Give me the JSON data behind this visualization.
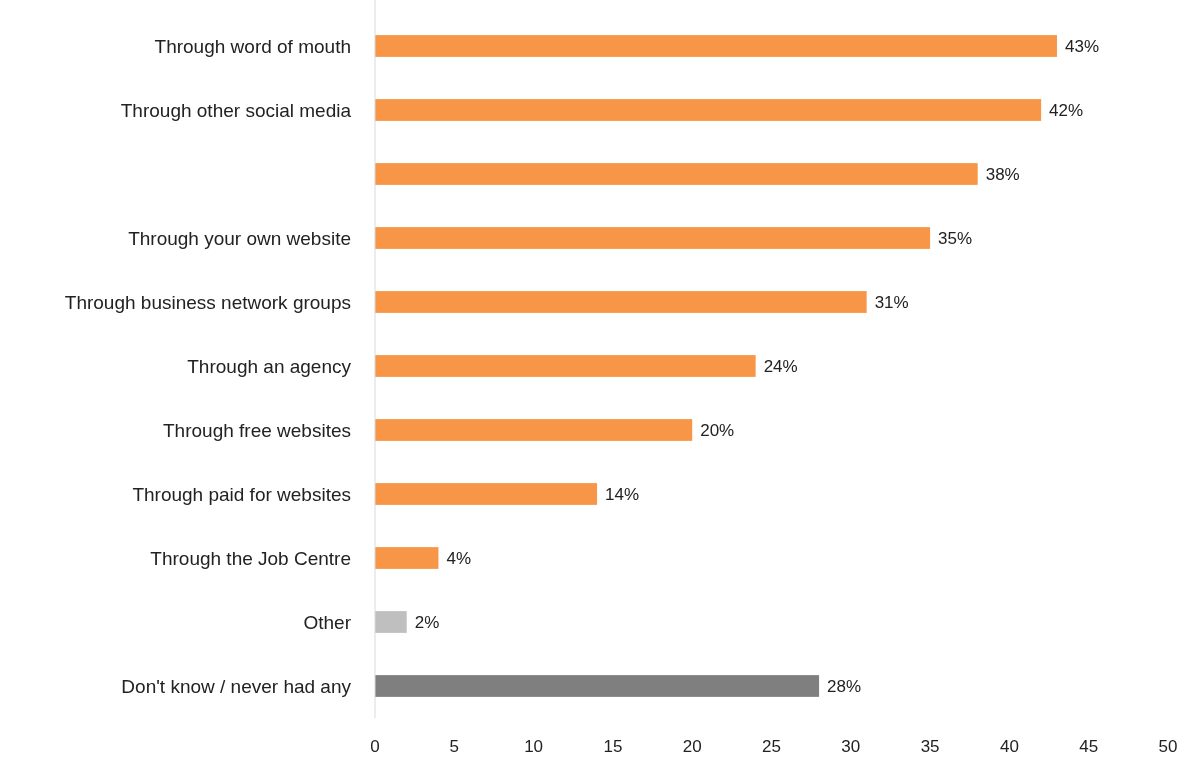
{
  "chart_data": {
    "type": "bar",
    "orientation": "horizontal",
    "categories": [
      "Through word of mouth",
      "Through other social media",
      null,
      "Through your own website",
      "Through business network groups",
      "Through an agency",
      "Through free websites",
      "Through paid for websites",
      "Through the Job Centre ",
      "Other",
      "Don't know / never had any"
    ],
    "values": [
      43,
      42,
      38,
      35,
      31,
      24,
      20,
      14,
      4,
      2,
      28
    ],
    "colors": [
      "#f79646",
      "#f79646",
      "#f79646",
      "#f79646",
      "#f79646",
      "#f79646",
      "#f79646",
      "#f79646",
      "#f79646",
      "#bfbfbf",
      "#7f7f7f"
    ],
    "value_labels": [
      "43%",
      "42%",
      "38%",
      "35%",
      "31%",
      "24%",
      "20%",
      "14%",
      "4%",
      "2%",
      "28%"
    ],
    "xlim": [
      0,
      50
    ],
    "xticks": [
      0,
      5,
      10,
      15,
      20,
      25,
      30,
      35,
      40,
      45,
      50
    ]
  }
}
